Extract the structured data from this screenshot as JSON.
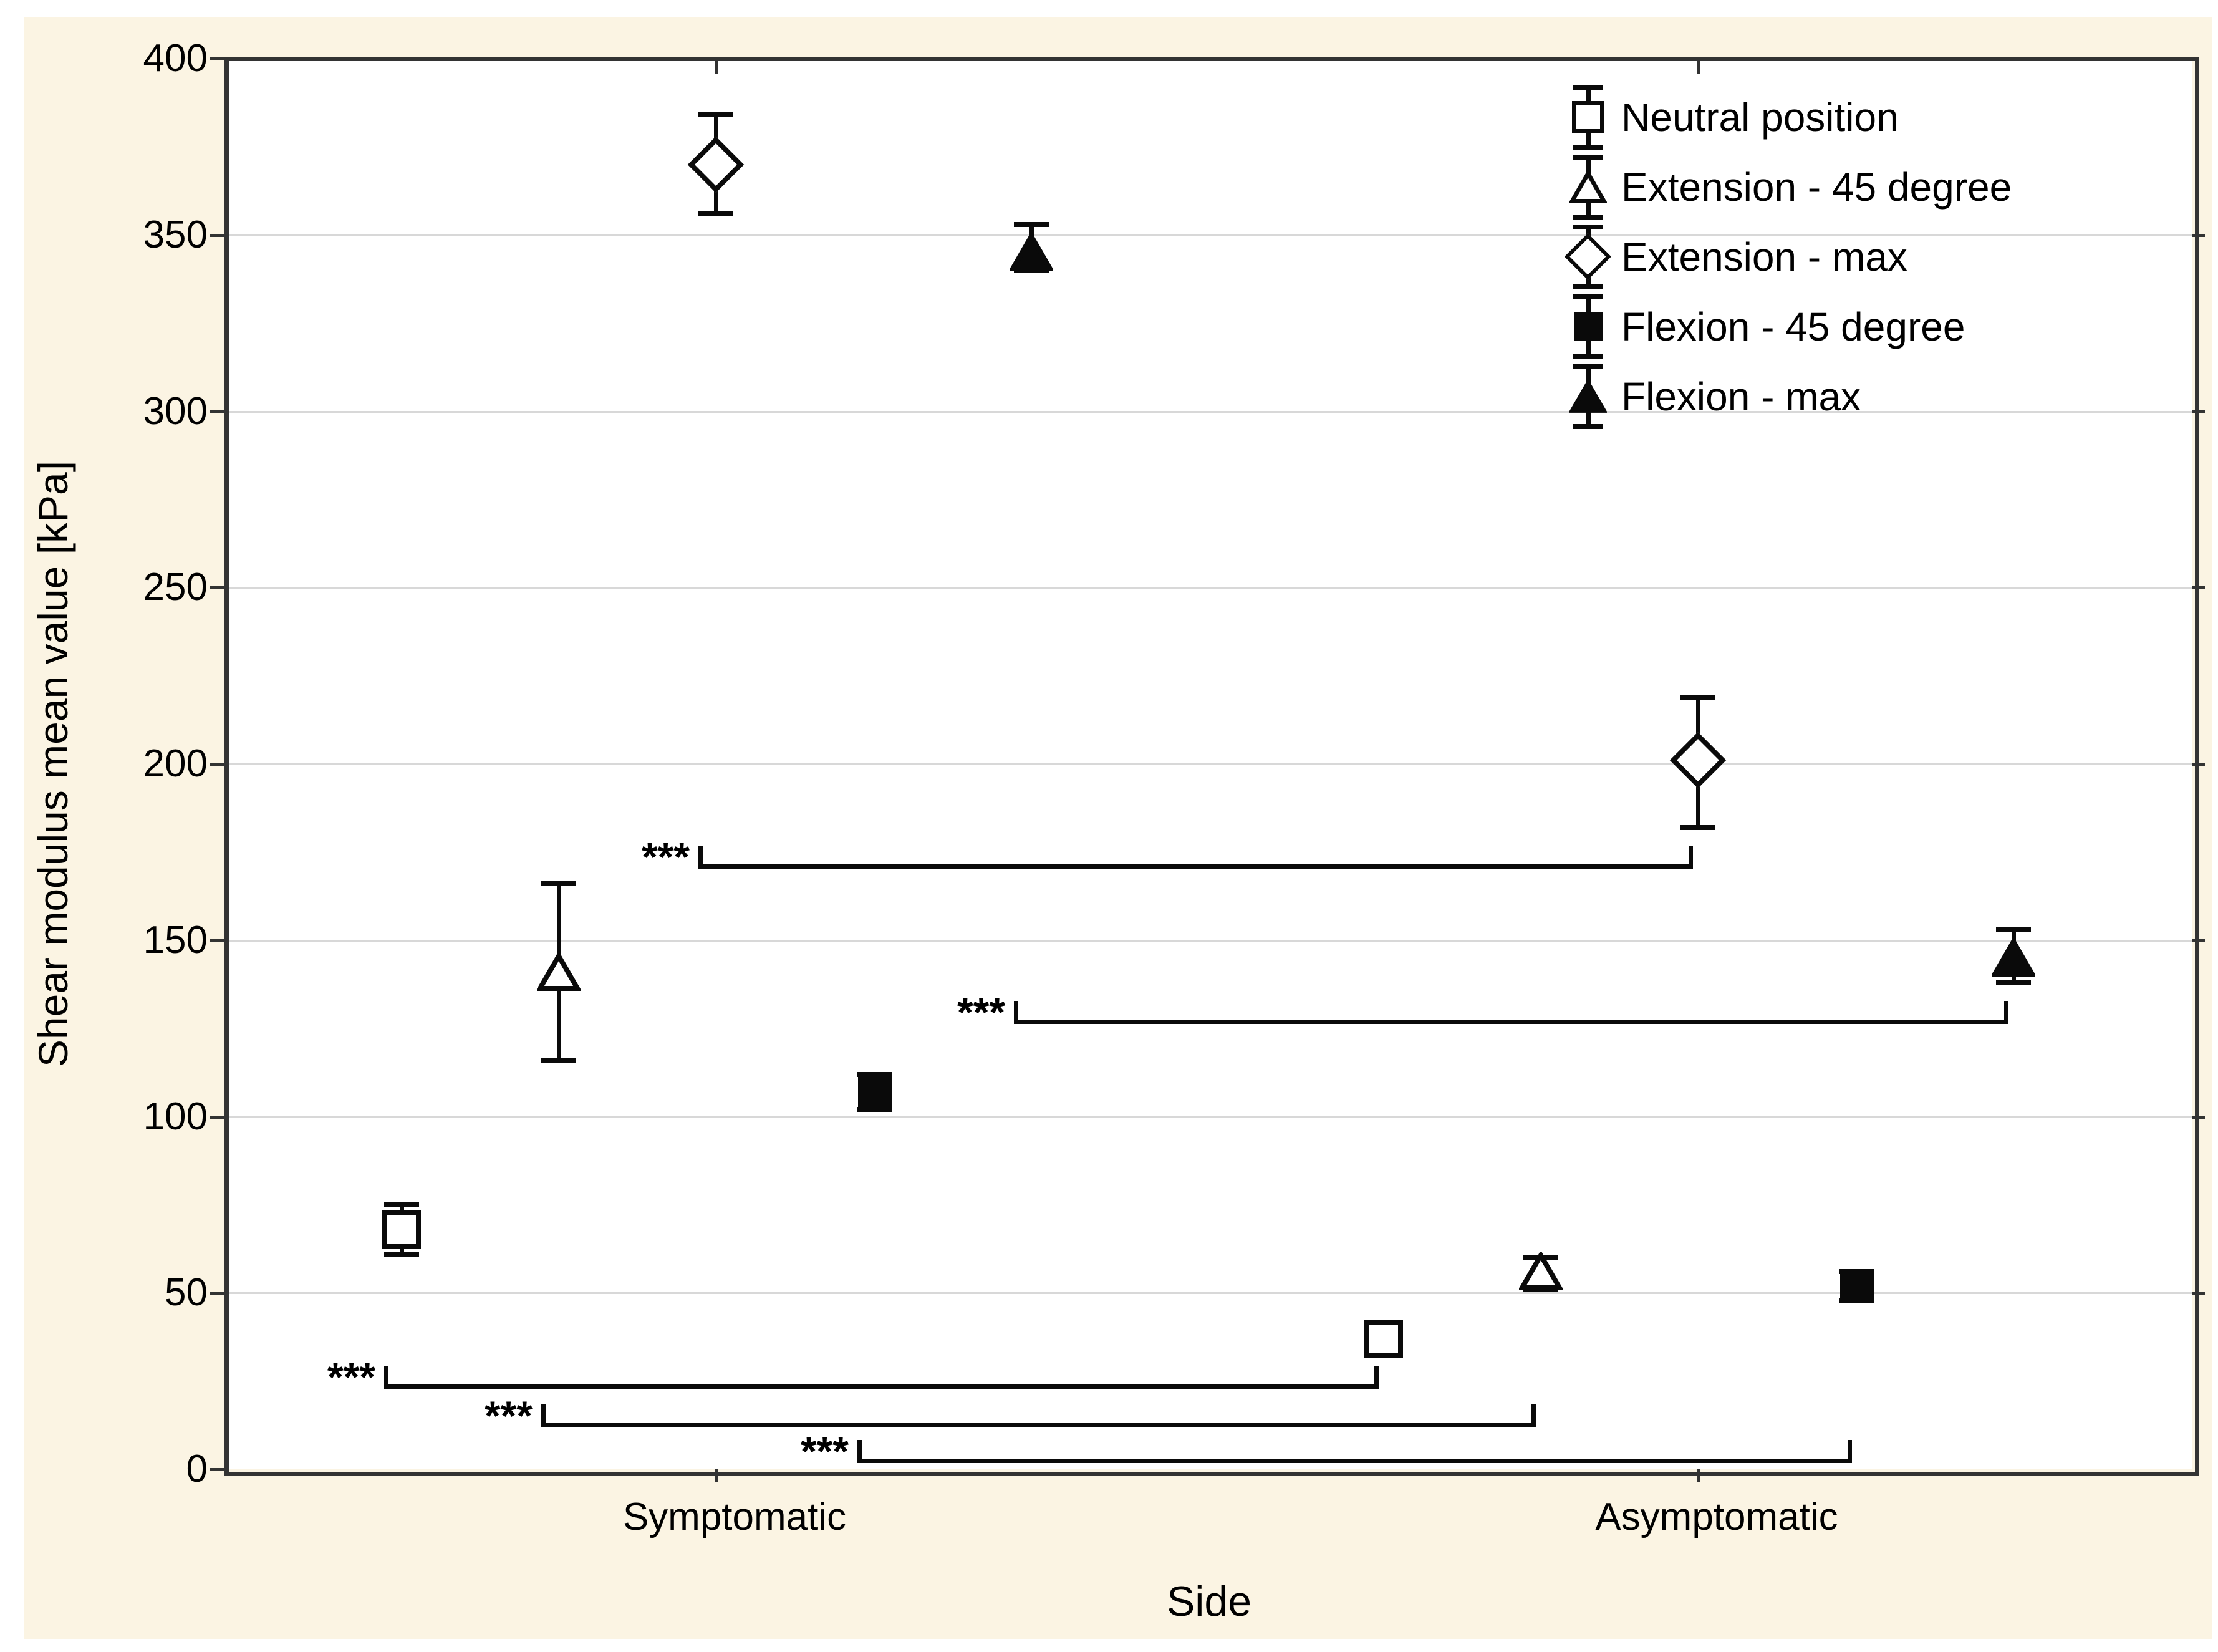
{
  "figure": {
    "background_color": "#FBF4E3",
    "plot_background": "#ffffff",
    "frame_color": "#333333",
    "gridline_color": "#d8d8d8",
    "marker_color": "#0a0a0a",
    "significance_label": "***"
  },
  "chart_data": {
    "type": "scatter",
    "title": "",
    "xlabel": "Side",
    "ylabel": "Shear modulus mean value [kPa]",
    "ylim": [
      0,
      400
    ],
    "yticks": [
      0,
      50,
      100,
      150,
      200,
      250,
      300,
      350,
      400
    ],
    "grid": "horizontal",
    "legend_position": "top-right-inside",
    "categories": [
      "Symptomatic",
      "Asymptomatic"
    ],
    "series": [
      {
        "name": "Neutral position",
        "marker": "open-square",
        "values": [
          {
            "category": "Symptomatic",
            "mean": 68,
            "ci_low": 61,
            "ci_high": 75
          },
          {
            "category": "Asymptomatic",
            "mean": 37,
            "ci_low": 33,
            "ci_high": 41
          }
        ]
      },
      {
        "name": "Extension - 45 degree",
        "marker": "open-triangle",
        "values": [
          {
            "category": "Symptomatic",
            "mean": 141,
            "ci_low": 116,
            "ci_high": 166
          },
          {
            "category": "Asymptomatic",
            "mean": 56,
            "ci_low": 51,
            "ci_high": 60
          }
        ]
      },
      {
        "name": "Extension - max",
        "marker": "open-diamond",
        "values": [
          {
            "category": "Symptomatic",
            "mean": 370,
            "ci_low": 356,
            "ci_high": 384
          },
          {
            "category": "Asymptomatic",
            "mean": 201,
            "ci_low": 182,
            "ci_high": 219
          }
        ]
      },
      {
        "name": "Flexion - 45 degree",
        "marker": "filled-square",
        "values": [
          {
            "category": "Symptomatic",
            "mean": 107,
            "ci_low": 102,
            "ci_high": 112
          },
          {
            "category": "Asymptomatic",
            "mean": 52,
            "ci_low": 48,
            "ci_high": 56
          }
        ]
      },
      {
        "name": "Flexion - max",
        "marker": "filled-triangle",
        "values": [
          {
            "category": "Symptomatic",
            "mean": 345,
            "ci_low": 340,
            "ci_high": 353
          },
          {
            "category": "Asymptomatic",
            "mean": 145,
            "ci_low": 138,
            "ci_high": 153
          }
        ]
      }
    ],
    "significance": [
      {
        "label": "***",
        "series": "Neutral position",
        "from": "Symptomatic",
        "to": "Asymptomatic",
        "y": 23.5
      },
      {
        "label": "***",
        "series": "Extension - 45 degree",
        "from": "Symptomatic",
        "to": "Asymptomatic",
        "y": 12.5
      },
      {
        "label": "***",
        "series": "Extension - max",
        "from": "Symptomatic",
        "to": "Asymptomatic",
        "y": 171
      },
      {
        "label": "***",
        "series": "Flexion - 45 degree",
        "from": "Symptomatic",
        "to": "Asymptomatic",
        "y": 2.5
      },
      {
        "label": "***",
        "series": "Flexion - max",
        "from": "Symptomatic",
        "to": "Asymptomatic",
        "y": 127
      }
    ],
    "legend": [
      {
        "label": "Neutral position",
        "marker": "open-square"
      },
      {
        "label": "Extension - 45 degree",
        "marker": "open-triangle"
      },
      {
        "label": "Extension - max",
        "marker": "open-diamond"
      },
      {
        "label": "Flexion - 45 degree",
        "marker": "filled-square"
      },
      {
        "label": "Flexion - max",
        "marker": "filled-triangle"
      }
    ]
  }
}
